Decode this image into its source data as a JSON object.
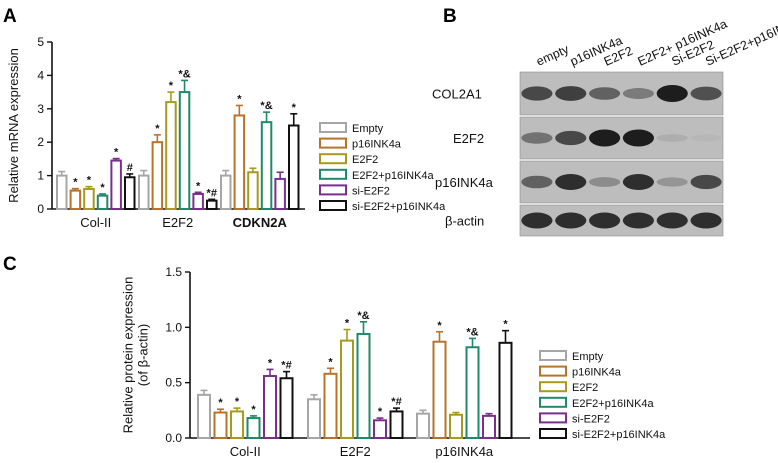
{
  "colors": {
    "empty": "#a6a6a6",
    "p16INK4a": "#b8732b",
    "E2F2": "#a89a1e",
    "E2F2+p16INK4a": "#1f8a6a",
    "si-E2F2": "#7a2e8e",
    "si-E2F2+p16INK4a": "#111111"
  },
  "chart_data": [
    {
      "panel": "A",
      "type": "bar",
      "title": "",
      "xlabel": "",
      "ylabel": "Relative mRNA expression",
      "ylim": [
        0,
        5
      ],
      "yticks": [
        "0",
        "1",
        "2",
        "3",
        "4",
        "5"
      ],
      "categories": [
        "Col-II",
        "E2F2",
        "CDKN2A"
      ],
      "legend_position": "right",
      "series": [
        {
          "name": "Empty",
          "values": [
            1.0,
            1.0,
            1.0
          ],
          "errors": [
            0.12,
            0.15,
            0.15
          ],
          "sig": [
            "",
            "",
            ""
          ]
        },
        {
          "name": "p16INK4a",
          "values": [
            0.55,
            2.0,
            2.8
          ],
          "errors": [
            0.06,
            0.22,
            0.3
          ],
          "sig": [
            "*",
            "*",
            "*"
          ]
        },
        {
          "name": "E2F2",
          "values": [
            0.6,
            3.2,
            1.1
          ],
          "errors": [
            0.07,
            0.3,
            0.12
          ],
          "sig": [
            "*",
            "*",
            ""
          ]
        },
        {
          "name": "E2F2+p16INK4a",
          "values": [
            0.4,
            3.5,
            2.6
          ],
          "errors": [
            0.05,
            0.35,
            0.3
          ],
          "sig": [
            "*",
            "*&",
            "*&"
          ]
        },
        {
          "name": "si-E2F2",
          "values": [
            1.45,
            0.45,
            0.9
          ],
          "errors": [
            0.06,
            0.05,
            0.2
          ],
          "sig": [
            "*",
            "*",
            ""
          ]
        },
        {
          "name": "si-E2F2+p16INK4a",
          "values": [
            0.95,
            0.25,
            2.5
          ],
          "errors": [
            0.1,
            0.04,
            0.35
          ],
          "sig": [
            "#",
            "*#",
            "*"
          ]
        }
      ]
    },
    {
      "panel": "C",
      "type": "bar",
      "title": "",
      "xlabel": "",
      "ylabel": "Relative protein expression\n(of β-actin)",
      "ylim": [
        0,
        1.5
      ],
      "yticks": [
        "0.0",
        "0.5",
        "1.0",
        "1.5"
      ],
      "categories": [
        "Col-II",
        "E2F2",
        "p16INK4a"
      ],
      "legend_position": "right",
      "series": [
        {
          "name": "Empty",
          "values": [
            0.39,
            0.35,
            0.22
          ],
          "errors": [
            0.04,
            0.04,
            0.03
          ],
          "sig": [
            "",
            "",
            ""
          ]
        },
        {
          "name": "p16INK4a",
          "values": [
            0.23,
            0.58,
            0.87
          ],
          "errors": [
            0.03,
            0.05,
            0.09
          ],
          "sig": [
            "*",
            "*",
            "*"
          ]
        },
        {
          "name": "E2F2",
          "values": [
            0.24,
            0.88,
            0.21
          ],
          "errors": [
            0.03,
            0.1,
            0.02
          ],
          "sig": [
            "*",
            "*",
            ""
          ]
        },
        {
          "name": "E2F2+p16INK4a",
          "values": [
            0.18,
            0.94,
            0.82
          ],
          "errors": [
            0.02,
            0.11,
            0.08
          ],
          "sig": [
            "*",
            "*&",
            "*&"
          ]
        },
        {
          "name": "si-E2F2",
          "values": [
            0.56,
            0.16,
            0.2
          ],
          "errors": [
            0.06,
            0.02,
            0.02
          ],
          "sig": [
            "*",
            "*",
            ""
          ]
        },
        {
          "name": "si-E2F2+p16INK4a",
          "values": [
            0.54,
            0.24,
            0.86
          ],
          "errors": [
            0.06,
            0.03,
            0.11
          ],
          "sig": [
            "*#",
            "*#",
            "*"
          ]
        }
      ]
    }
  ],
  "panels": {
    "a_letter": "A",
    "b_letter": "B",
    "c_letter": "C"
  },
  "blot": {
    "columns": [
      "empty",
      "p16INK4a",
      "E2F2",
      "E2F2+ p16INK4a",
      "Si-E2F2",
      "Si-E2F2+p16INK4a"
    ],
    "rows": [
      {
        "label": "COL2A1",
        "intensity": [
          0.75,
          0.8,
          0.6,
          0.45,
          1.0,
          0.7
        ]
      },
      {
        "label": "E2F2",
        "intensity": [
          0.5,
          0.75,
          1.0,
          1.0,
          0.15,
          0.1
        ]
      },
      {
        "label": "p16INK4a",
        "intensity": [
          0.6,
          0.9,
          0.35,
          0.9,
          0.3,
          0.75
        ]
      },
      {
        "label": "β-actin",
        "intensity": [
          0.9,
          0.9,
          0.9,
          0.9,
          0.9,
          0.9
        ]
      }
    ]
  }
}
